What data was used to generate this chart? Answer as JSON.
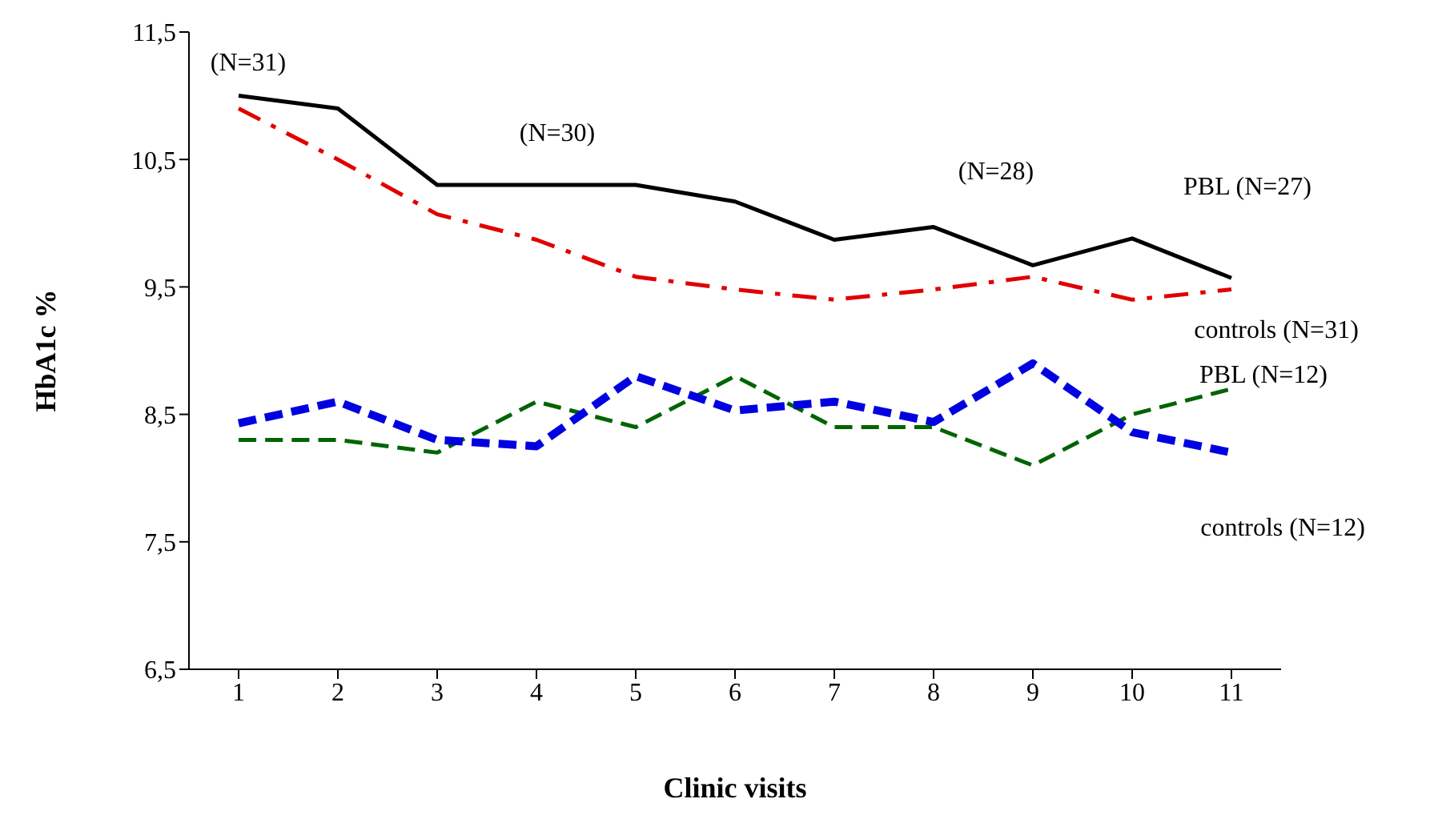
{
  "chart_data": {
    "type": "line",
    "xlabel": "Clinic visits",
    "ylabel": "HbA1c %",
    "x": [
      1,
      2,
      3,
      4,
      5,
      6,
      7,
      8,
      9,
      10,
      11
    ],
    "series": [
      {
        "name": "PBL (N=27)",
        "color": "#000000",
        "line_style": "solid",
        "values": [
          11.0,
          10.9,
          10.3,
          10.3,
          10.3,
          10.17,
          9.87,
          9.97,
          9.67,
          9.88,
          9.57
        ]
      },
      {
        "name": "controls (N=31)",
        "color": "#e00000",
        "line_style": "dashdot",
        "values": [
          10.9,
          10.5,
          10.07,
          9.87,
          9.58,
          9.48,
          9.4,
          9.48,
          9.58,
          9.4,
          9.48
        ]
      },
      {
        "name": "PBL (N=12)",
        "color": "#006400",
        "line_style": "dashed",
        "values": [
          8.3,
          8.3,
          8.2,
          8.6,
          8.4,
          8.8,
          8.4,
          8.4,
          8.1,
          8.5,
          8.7
        ]
      },
      {
        "name": "controls (N=12)",
        "color": "#0000e0",
        "line_style": "dashed",
        "values": [
          8.43,
          8.6,
          8.3,
          8.25,
          8.8,
          8.53,
          8.6,
          8.44,
          8.9,
          8.36,
          8.2
        ]
      }
    ],
    "xlim": [
      0.5,
      11.5
    ],
    "xticks": [
      1,
      2,
      3,
      4,
      5,
      6,
      7,
      8,
      9,
      10,
      11
    ],
    "ylim": [
      6.5,
      11.5
    ],
    "yticks": [
      {
        "value": 6.5,
        "label": "6,5"
      },
      {
        "value": 7.5,
        "label": "7,5"
      },
      {
        "value": 8.5,
        "label": "8,5"
      },
      {
        "value": 9.5,
        "label": "9,5"
      },
      {
        "value": 10.5,
        "label": "10,5"
      },
      {
        "value": 11.5,
        "label": "11,5"
      }
    ],
    "annotations": [
      "(N=31)",
      "(N=30)",
      "(N=28)"
    ],
    "grid": false,
    "legend": false,
    "marker": "none"
  }
}
